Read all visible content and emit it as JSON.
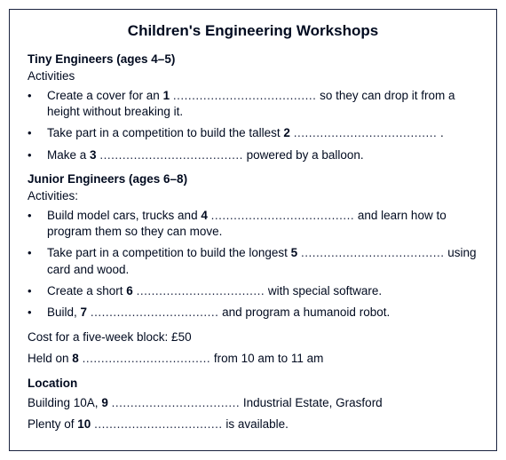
{
  "title": "Children's Engineering Workshops",
  "dots_short": "..............................",
  "dots_med": "..................................",
  "dots_long": "......................................",
  "tiny": {
    "heading": "Tiny Engineers (ages 4–5)",
    "activities_label": "Activities",
    "b1a": "Create a cover for an ",
    "n1": "1",
    "b1b": " so they can drop it from a height without breaking it.",
    "b2a": "Take part in a competition to build the tallest ",
    "n2": "2",
    "b2b": " .",
    "b3a": "Make a ",
    "n3": "3",
    "b3b": " powered by a balloon."
  },
  "junior": {
    "heading": "Junior Engineers (ages 6–8)",
    "activities_label": "Activities:",
    "b1a": "Build model cars, trucks and ",
    "n4": "4",
    "b1b": " and learn how to program them so they can move.",
    "b2a": "Take part in a competition to build the longest ",
    "n5": "5",
    "b2b": " using card and wood.",
    "b3a": "Create a short ",
    "n6": "6",
    "b3b": " with special software.",
    "b4a": "Build, ",
    "n7": "7",
    "b4b": " and program a humanoid robot."
  },
  "cost_line": "Cost for a five-week block: £50",
  "held_a": "Held on ",
  "n8": "8",
  "held_b": " from 10 am to 11 am",
  "location_heading": "Location",
  "loc1a": "Building 10A, ",
  "n9": "9",
  "loc1b": "  Industrial Estate, Grasford",
  "loc2a": "Plenty of ",
  "n10": "10",
  "loc2b": " is available."
}
